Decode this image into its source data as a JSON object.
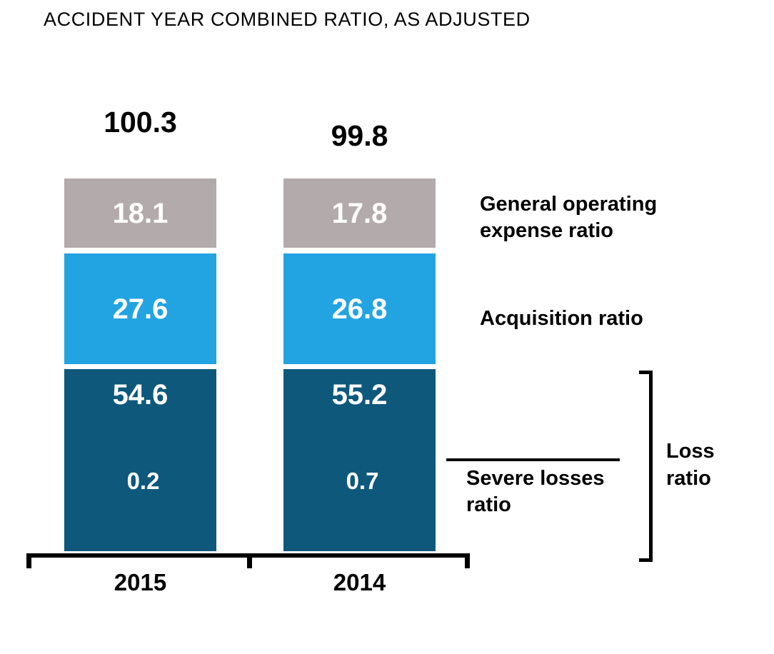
{
  "title": "ACCIDENT YEAR COMBINED RATIO, AS ADJUSTED",
  "chart_data": {
    "type": "bar",
    "subtype": "stacked-column",
    "title": "ACCIDENT YEAR COMBINED RATIO, AS ADJUSTED",
    "categories": [
      "2015",
      "2014"
    ],
    "totals": [
      100.3,
      99.8
    ],
    "series": [
      {
        "name": "Loss ratio",
        "values": [
          54.6,
          55.2
        ]
      },
      {
        "name": "Severe losses ratio",
        "values": [
          0.2,
          0.7
        ]
      },
      {
        "name": "Acquisition ratio",
        "values": [
          27.6,
          26.8
        ]
      },
      {
        "name": "General operating expense ratio",
        "values": [
          18.1,
          17.8
        ]
      }
    ],
    "legend_position": "right",
    "grid": false,
    "notes": "Severe losses ratio values are printed inside the dark loss-ratio segment; a right-side bracket labeled Loss ratio spans the dark segment."
  },
  "bars": [
    {
      "year": "2015",
      "total": "100.3",
      "general_operating": "18.1",
      "acquisition": "27.6",
      "loss": "54.6",
      "severe": "0.2"
    },
    {
      "year": "2014",
      "total": "99.8",
      "general_operating": "17.8",
      "acquisition": "26.8",
      "loss": "55.2",
      "severe": "0.7"
    }
  ],
  "side_labels": {
    "general_operating": "General operating\nexpense ratio",
    "acquisition": "Acquisition ratio",
    "severe_losses": "Severe losses\nratio",
    "loss_ratio": "Loss\nratio"
  },
  "colors": {
    "general_operating_segment": "#b3abab",
    "acquisition_segment": "#22a4e2",
    "loss_segment": "#0e587c",
    "bar_value_text": "#ffffff",
    "text": "#000000"
  }
}
